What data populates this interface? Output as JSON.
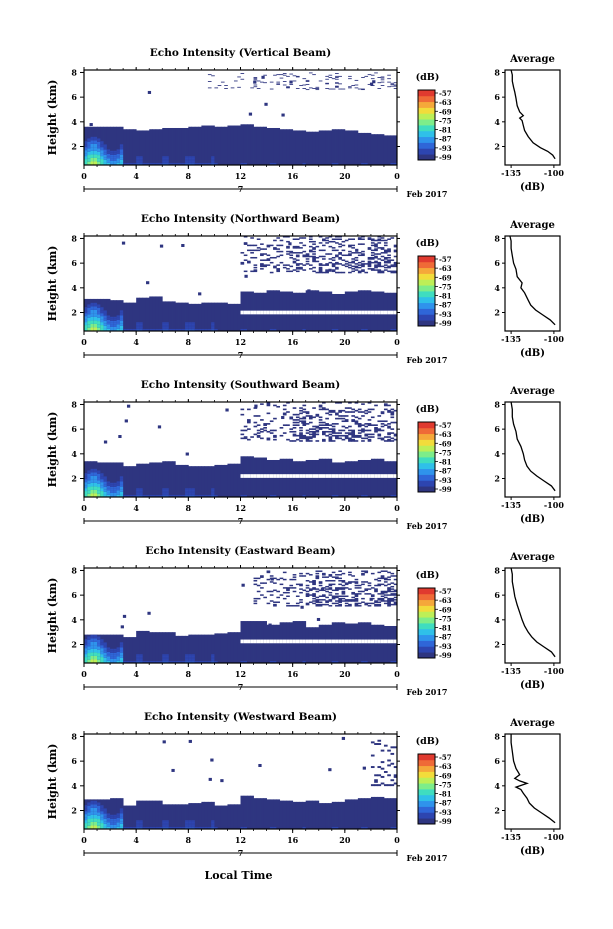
{
  "panel_titles": [
    "Echo Intensity (Vertical Beam)",
    "Echo Intensity (Northward Beam)",
    "Echo Intensity (Southward Beam)",
    "Echo Intensity (Eastward Beam)",
    "Echo Intensity (Westward Beam)"
  ],
  "average_title": "Average",
  "y_label": "Height (km)",
  "x_label": "Local Time",
  "date_label": "Feb 2017",
  "day_label": "7",
  "colorbar_unit": "(dB)",
  "avg_x_unit": "(dB)",
  "colors": {
    "low": "#2e3580",
    "scale": [
      "#2e3580",
      "#2d45b0",
      "#2f66d8",
      "#2f93ec",
      "#2fc0e9",
      "#3fddc0",
      "#7ded8a",
      "#bdef57",
      "#f2dc3b",
      "#f5a83a",
      "#ef6a37",
      "#e03a2f"
    ]
  },
  "chart_data": [
    {
      "type": "heatmap",
      "title": "Echo Intensity (Vertical Beam)",
      "xlabel": "",
      "ylabel": "Height (km)",
      "x_ticks": [
        "0",
        "4",
        "8",
        "12",
        "16",
        "20",
        "0"
      ],
      "y_ticks": [
        "2",
        "4",
        "6",
        "8"
      ],
      "xlim": [
        0,
        24
      ],
      "ylim": [
        0.5,
        8.2
      ],
      "colorbar": {
        "label": "(dB)",
        "ticks": [
          "-57",
          "-63",
          "-69",
          "-75",
          "-81",
          "-87",
          "-93",
          "-99"
        ]
      },
      "echo_top_km": [
        3.6,
        3.6,
        3.6,
        3.4,
        3.3,
        3.4,
        3.5,
        3.5,
        3.6,
        3.7,
        3.6,
        3.7,
        3.8,
        3.6,
        3.5,
        3.4,
        3.3,
        3.2,
        3.3,
        3.4,
        3.3,
        3.1,
        3.0,
        2.9
      ],
      "gap_km": null,
      "upper_echo": {
        "start_hr": 9,
        "range_km": [
          6.6,
          8.0
        ],
        "density": 0.08
      },
      "average": {
        "title": "Average",
        "xlabel": "(dB)",
        "x_ticks": [
          "-135",
          "-100"
        ],
        "xlim": [
          -140,
          -95
        ],
        "y_ticks": [
          "2",
          "4",
          "6",
          "8"
        ],
        "profile": [
          [
            -99,
            1.0
          ],
          [
            -101,
            1.3
          ],
          [
            -105,
            1.6
          ],
          [
            -111,
            1.9
          ],
          [
            -117,
            2.3
          ],
          [
            -121,
            2.8
          ],
          [
            -124,
            3.3
          ],
          [
            -125,
            3.7
          ],
          [
            -126,
            4.1
          ],
          [
            -128,
            4.3
          ],
          [
            -125,
            4.5
          ],
          [
            -128,
            4.8
          ],
          [
            -130,
            5.3
          ],
          [
            -131,
            5.9
          ],
          [
            -132,
            6.4
          ],
          [
            -133,
            6.8
          ],
          [
            -134,
            7.3
          ],
          [
            -134,
            7.8
          ],
          [
            -135,
            8.2
          ]
        ]
      }
    },
    {
      "type": "heatmap",
      "title": "Echo Intensity (Northward Beam)",
      "xlabel": "",
      "ylabel": "Height (km)",
      "x_ticks": [
        "0",
        "4",
        "8",
        "12",
        "16",
        "20",
        "0"
      ],
      "y_ticks": [
        "2",
        "4",
        "6",
        "8"
      ],
      "xlim": [
        0,
        24
      ],
      "ylim": [
        0.5,
        8.2
      ],
      "colorbar": {
        "label": "(dB)",
        "ticks": [
          "-57",
          "-63",
          "-69",
          "-75",
          "-81",
          "-87",
          "-93",
          "-99"
        ]
      },
      "echo_top_km": [
        3.1,
        3.1,
        3.0,
        2.8,
        3.2,
        3.3,
        2.9,
        2.8,
        2.7,
        2.8,
        2.8,
        2.7,
        3.7,
        3.6,
        3.8,
        3.7,
        3.6,
        3.8,
        3.7,
        3.5,
        3.7,
        3.8,
        3.7,
        3.6
      ],
      "gap_km": {
        "start_hr": 12,
        "range_km": [
          1.85,
          2.15
        ]
      },
      "upper_echo": {
        "start_hr": 12,
        "range_km": [
          5.2,
          8.2
        ],
        "density": 0.38
      },
      "average": {
        "title": "Average",
        "xlabel": "(dB)",
        "x_ticks": [
          "-135",
          "-100"
        ],
        "xlim": [
          -140,
          -95
        ],
        "y_ticks": [
          "2",
          "4",
          "6",
          "8"
        ],
        "profile": [
          [
            -99,
            1.0
          ],
          [
            -103,
            1.4
          ],
          [
            -109,
            1.8
          ],
          [
            -115,
            2.2
          ],
          [
            -119,
            2.6
          ],
          [
            -121,
            3.0
          ],
          [
            -124,
            3.6
          ],
          [
            -127,
            4.0
          ],
          [
            -126,
            4.4
          ],
          [
            -130,
            4.9
          ],
          [
            -131,
            5.5
          ],
          [
            -133,
            6.0
          ],
          [
            -134,
            6.6
          ],
          [
            -135,
            7.2
          ],
          [
            -135,
            7.8
          ],
          [
            -136,
            8.2
          ]
        ]
      }
    },
    {
      "type": "heatmap",
      "title": "Echo Intensity (Southward Beam)",
      "xlabel": "",
      "ylabel": "Height (km)",
      "x_ticks": [
        "0",
        "4",
        "8",
        "12",
        "16",
        "20",
        "0"
      ],
      "y_ticks": [
        "2",
        "4",
        "6",
        "8"
      ],
      "xlim": [
        0,
        24
      ],
      "ylim": [
        0.5,
        8.2
      ],
      "colorbar": {
        "label": "(dB)",
        "ticks": [
          "-57",
          "-63",
          "-69",
          "-75",
          "-81",
          "-87",
          "-93",
          "-99"
        ]
      },
      "echo_top_km": [
        3.4,
        3.3,
        3.3,
        3.0,
        3.2,
        3.3,
        3.4,
        3.1,
        3.0,
        3.0,
        3.1,
        3.2,
        3.8,
        3.7,
        3.5,
        3.6,
        3.4,
        3.5,
        3.6,
        3.3,
        3.4,
        3.5,
        3.6,
        3.4
      ],
      "gap_km": {
        "start_hr": 12,
        "range_km": [
          2.05,
          2.35
        ]
      },
      "upper_echo": {
        "start_hr": 12,
        "range_km": [
          5.0,
          8.2
        ],
        "density": 0.34
      },
      "average": {
        "title": "Average",
        "xlabel": "(dB)",
        "x_ticks": [
          "-135",
          "-100"
        ],
        "xlim": [
          -140,
          -95
        ],
        "y_ticks": [
          "2",
          "4",
          "6",
          "8"
        ],
        "profile": [
          [
            -99,
            1.0
          ],
          [
            -102,
            1.4
          ],
          [
            -108,
            1.8
          ],
          [
            -114,
            2.2
          ],
          [
            -119,
            2.6
          ],
          [
            -122,
            3.0
          ],
          [
            -124,
            3.5
          ],
          [
            -125,
            4.0
          ],
          [
            -127,
            4.6
          ],
          [
            -130,
            5.2
          ],
          [
            -131,
            5.8
          ],
          [
            -133,
            6.4
          ],
          [
            -134,
            7.0
          ],
          [
            -134,
            7.6
          ],
          [
            -135,
            8.2
          ]
        ]
      }
    },
    {
      "type": "heatmap",
      "title": "Echo Intensity (Eastward Beam)",
      "xlabel": "",
      "ylabel": "Height (km)",
      "x_ticks": [
        "0",
        "4",
        "8",
        "12",
        "16",
        "20",
        "0"
      ],
      "y_ticks": [
        "2",
        "4",
        "6",
        "8"
      ],
      "xlim": [
        0,
        24
      ],
      "ylim": [
        0.5,
        8.2
      ],
      "colorbar": {
        "label": "(dB)",
        "ticks": [
          "-57",
          "-63",
          "-69",
          "-75",
          "-81",
          "-87",
          "-93",
          "-99"
        ]
      },
      "echo_top_km": [
        2.8,
        2.8,
        2.8,
        2.6,
        3.1,
        3.0,
        3.0,
        2.7,
        2.8,
        2.8,
        2.9,
        3.0,
        3.9,
        3.9,
        3.6,
        3.8,
        3.9,
        3.4,
        3.6,
        3.8,
        3.7,
        3.8,
        3.6,
        3.5
      ],
      "gap_km": {
        "start_hr": 12,
        "range_km": [
          2.1,
          2.4
        ]
      },
      "upper_echo": {
        "start_hr": 13,
        "range_km": [
          5.1,
          8.0
        ],
        "density": 0.36
      },
      "average": {
        "title": "Average",
        "xlabel": "(dB)",
        "x_ticks": [
          "-135",
          "-100"
        ],
        "xlim": [
          -140,
          -95
        ],
        "y_ticks": [
          "2",
          "4",
          "6",
          "8"
        ],
        "profile": [
          [
            -99,
            1.0
          ],
          [
            -102,
            1.4
          ],
          [
            -108,
            1.8
          ],
          [
            -114,
            2.2
          ],
          [
            -118,
            2.6
          ],
          [
            -121,
            3.0
          ],
          [
            -124,
            3.5
          ],
          [
            -126,
            4.0
          ],
          [
            -128,
            4.6
          ],
          [
            -130,
            5.2
          ],
          [
            -132,
            5.9
          ],
          [
            -133,
            6.5
          ],
          [
            -134,
            7.1
          ],
          [
            -134,
            7.7
          ],
          [
            -135,
            8.2
          ]
        ]
      }
    },
    {
      "type": "heatmap",
      "title": "Echo Intensity (Westward Beam)",
      "xlabel": "Local Time",
      "ylabel": "Height (km)",
      "x_ticks": [
        "0",
        "4",
        "8",
        "12",
        "16",
        "20",
        "0"
      ],
      "y_ticks": [
        "2",
        "4",
        "6",
        "8"
      ],
      "xlim": [
        0,
        24
      ],
      "ylim": [
        0.5,
        8.2
      ],
      "colorbar": {
        "label": "(dB)",
        "ticks": [
          "-57",
          "-63",
          "-69",
          "-75",
          "-81",
          "-87",
          "-93",
          "-99"
        ]
      },
      "echo_top_km": [
        2.9,
        2.9,
        3.0,
        2.4,
        2.8,
        2.8,
        2.5,
        2.5,
        2.6,
        2.7,
        2.4,
        2.5,
        3.2,
        3.0,
        2.9,
        2.8,
        2.7,
        2.8,
        2.6,
        2.7,
        2.9,
        3.0,
        3.1,
        3.0
      ],
      "gap_km": null,
      "upper_echo": {
        "start_hr": 22,
        "range_km": [
          4.0,
          8.0
        ],
        "density": 0.35
      },
      "average": {
        "title": "Average",
        "xlabel": "(dB)",
        "x_ticks": [
          "-135",
          "-100"
        ],
        "xlim": [
          -140,
          -95
        ],
        "y_ticks": [
          "2",
          "4",
          "6",
          "8"
        ],
        "profile": [
          [
            -99,
            1.0
          ],
          [
            -104,
            1.4
          ],
          [
            -110,
            1.8
          ],
          [
            -116,
            2.2
          ],
          [
            -120,
            2.6
          ],
          [
            -122,
            3.0
          ],
          [
            -125,
            3.4
          ],
          [
            -127,
            3.7
          ],
          [
            -131,
            3.9
          ],
          [
            -122,
            4.2
          ],
          [
            -128,
            4.4
          ],
          [
            -132,
            4.6
          ],
          [
            -128,
            4.9
          ],
          [
            -131,
            5.4
          ],
          [
            -133,
            6.0
          ],
          [
            -134,
            6.8
          ],
          [
            -135,
            7.5
          ],
          [
            -135,
            8.2
          ]
        ]
      }
    }
  ]
}
